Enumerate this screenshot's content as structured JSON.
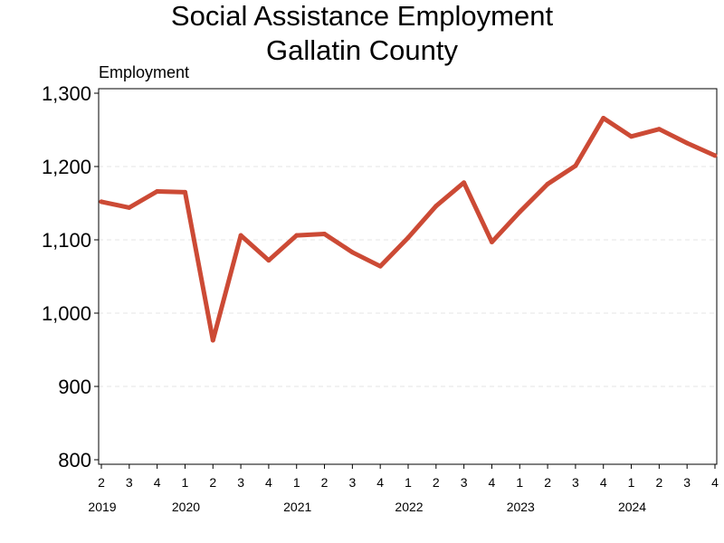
{
  "chart_data": {
    "type": "line",
    "title": "Social Assistance Employment",
    "subtitle": "Gallatin County",
    "ylabel": "Employment",
    "xlabel": "",
    "ylim": [
      800,
      1300
    ],
    "yticks": [
      800,
      900,
      1000,
      1100,
      1200,
      1300
    ],
    "ytick_labels": [
      "800",
      "900",
      "1,000",
      "1,100",
      "1,200",
      "1,300"
    ],
    "grid": "horizontal-dashed",
    "line_color": "#cc4a35",
    "x": [
      "2019 Q2",
      "2019 Q3",
      "2019 Q4",
      "2020 Q1",
      "2020 Q2",
      "2020 Q3",
      "2020 Q4",
      "2021 Q1",
      "2021 Q2",
      "2021 Q3",
      "2021 Q4",
      "2022 Q1",
      "2022 Q2",
      "2022 Q3",
      "2022 Q4",
      "2023 Q1",
      "2023 Q2",
      "2023 Q3",
      "2023 Q4",
      "2024 Q1",
      "2024 Q2",
      "2024 Q3",
      "2024 Q4"
    ],
    "quarter_labels": [
      "2",
      "3",
      "4",
      "1",
      "2",
      "3",
      "4",
      "1",
      "2",
      "3",
      "4",
      "1",
      "2",
      "3",
      "4",
      "1",
      "2",
      "3",
      "4",
      "1",
      "2",
      "3",
      "4"
    ],
    "year_labels": [
      {
        "year": "2019",
        "index": 0
      },
      {
        "year": "2020",
        "index": 3
      },
      {
        "year": "2021",
        "index": 7
      },
      {
        "year": "2022",
        "index": 11
      },
      {
        "year": "2023",
        "index": 15
      },
      {
        "year": "2024",
        "index": 19
      }
    ],
    "series": [
      {
        "values": [
          1152,
          1144,
          1166,
          1165,
          963,
          1106,
          1072,
          1106,
          1108,
          1083,
          1064,
          1103,
          1146,
          1178,
          1097,
          1138,
          1176,
          1201,
          1266,
          1241,
          1251,
          1232,
          1215
        ]
      }
    ]
  }
}
